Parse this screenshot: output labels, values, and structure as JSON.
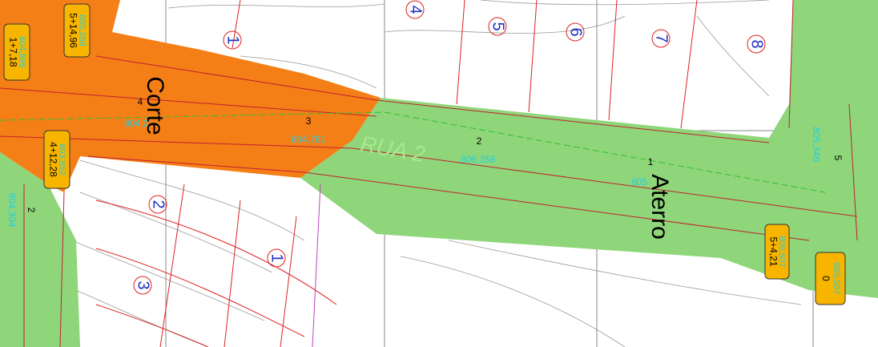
{
  "areas": [
    "Corte",
    "Aterro"
  ],
  "street": "RUA 2",
  "lots": [
    "1",
    "4",
    "5",
    "6",
    "7",
    "8",
    "2",
    "1",
    "3"
  ],
  "stations": [
    {
      "station": "5+14,96",
      "elevation": "805,266"
    },
    {
      "station": "1+7,18",
      "elevation": "804,896"
    },
    {
      "station": "4+12,28",
      "elevation": "803,852"
    },
    {
      "station": "5+4,21",
      "elevation": "805,507"
    },
    {
      "station": "0",
      "elevation": "805,507"
    }
  ],
  "points": [
    {
      "number": "4",
      "elevation": "804,2"
    },
    {
      "number": "3",
      "elevation": "804,781"
    },
    {
      "number": "2",
      "elevation": "805,356"
    },
    {
      "number": "1",
      "elevation": "805"
    },
    {
      "number": "5",
      "elevation": "805,346"
    },
    {
      "number": "2",
      "elevation": "804,304"
    }
  ]
}
